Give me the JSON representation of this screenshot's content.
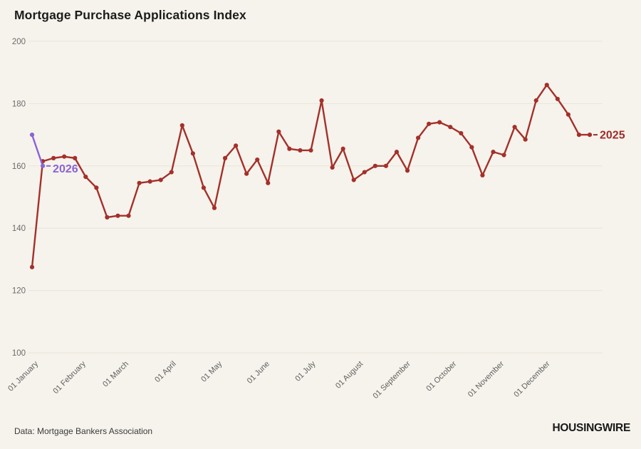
{
  "page": {
    "title": "Mortgage Purchase Applications Index",
    "source_note": "Data: Mortgage Bankers Association",
    "brand": "HOUSINGWIRE",
    "background_color": "#f6f3ec",
    "gridline_color": "#e9e4da",
    "axis_text_color": "#6b6b6b"
  },
  "chart_data": {
    "type": "line",
    "title": "Mortgage Purchase Applications Index",
    "xlabel": "",
    "ylabel": "",
    "grid": "horizontal",
    "legend_position": "end-of-line-labels",
    "x_axis": {
      "tick_labels": [
        "01 January",
        "01 February",
        "01 March",
        "01 April",
        "01 May",
        "01 June",
        "01 July",
        "01 August",
        "01 September",
        "01 October",
        "01 November",
        "01 December"
      ],
      "tick_day_of_year": [
        0,
        31,
        59,
        90,
        120,
        151,
        181,
        212,
        243,
        273,
        304,
        334
      ],
      "days_span": 364,
      "label_rotation_deg": -45
    },
    "y_axis": {
      "ticks": [
        100,
        120,
        140,
        160,
        180,
        200
      ],
      "range": [
        100,
        200
      ]
    },
    "series": [
      {
        "name": "2025",
        "color": "#a4302a",
        "label_color": "#9e2b2b",
        "interval_days": 7,
        "values": [
          127.5,
          161.5,
          162.5,
          163,
          162.5,
          156.5,
          153,
          143.5,
          144,
          144,
          154.5,
          155,
          155.5,
          158,
          173,
          164,
          153,
          146.5,
          162.5,
          166.5,
          157.5,
          162,
          154.5,
          171,
          165.5,
          165,
          165,
          181,
          159.5,
          165.5,
          155.5,
          158,
          160,
          160,
          164.5,
          158.5,
          169,
          173.5,
          174,
          172.5,
          170.5,
          166,
          157,
          164.5,
          163.5,
          172.5,
          168.5,
          181,
          186,
          181.5,
          176.5,
          170,
          170
        ]
      },
      {
        "name": "2026",
        "color": "#8a63d6",
        "label_color": "#8a63d6",
        "interval_days": 7,
        "values": [
          170,
          160
        ]
      }
    ]
  }
}
